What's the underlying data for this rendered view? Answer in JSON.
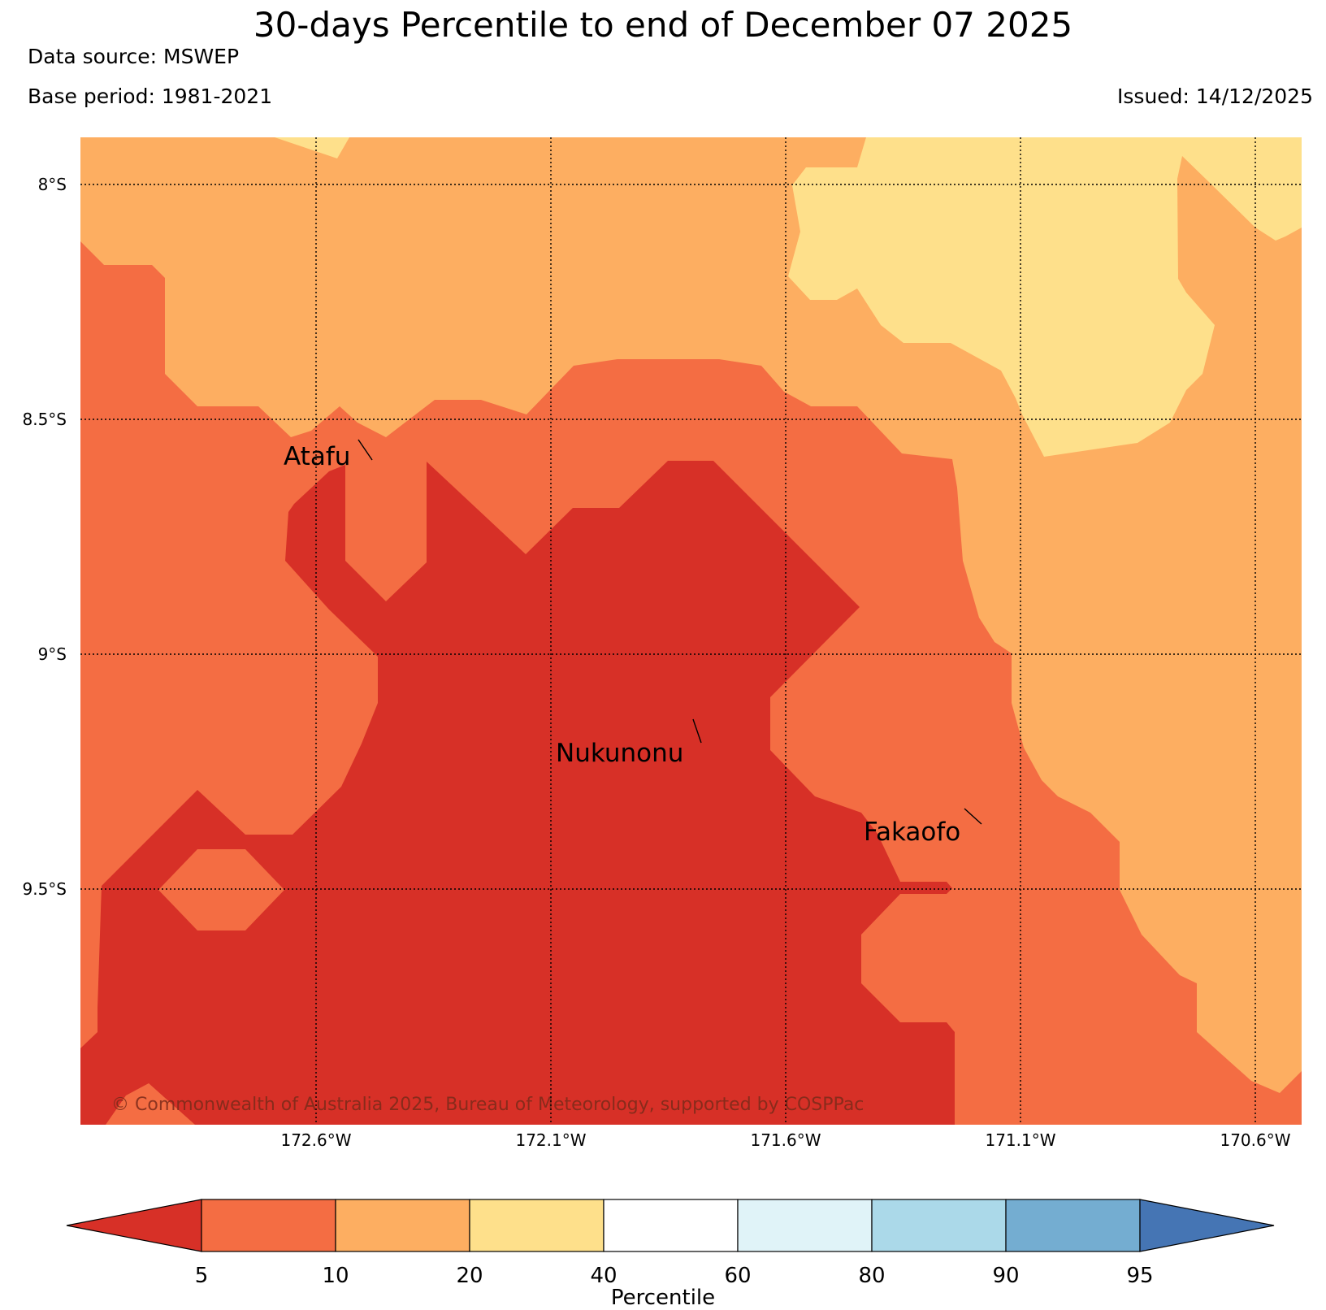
{
  "title": "30-days Percentile to end of December 07 2025",
  "data_source": "Data source: MSWEP",
  "base_period": "Base period: 1981-2021",
  "issued": "Issued: 14/12/2025",
  "copyright": "© Commonwealth of Australia 2025, Bureau of Meteorology, supported by COSPPac",
  "map": {
    "lat_ticks": [
      "8°S",
      "8.5°S",
      "9°S",
      "9.5°S"
    ],
    "lon_ticks": [
      "172.6°W",
      "172.1°W",
      "171.6°W",
      "171.1°W",
      "170.6°W"
    ],
    "places": [
      {
        "name": "Atafu"
      },
      {
        "name": "Nukunonu"
      },
      {
        "name": "Fakaofo"
      }
    ],
    "category_colors": {
      "lt5": "#d73027",
      "5-10": "#f46d43",
      "10-20": "#fdae61",
      "20-40": "#fee08b"
    }
  },
  "colorbar": {
    "title": "Percentile",
    "boundaries": [
      "5",
      "10",
      "20",
      "40",
      "60",
      "80",
      "90",
      "95"
    ],
    "colors": [
      "#d73027",
      "#f46d43",
      "#fdae61",
      "#fee08b",
      "#ffffff",
      "#e0f3f8",
      "#abd9e9",
      "#74add1",
      "#4575b4"
    ]
  },
  "icons": [
    "map-pin-leader-line"
  ]
}
